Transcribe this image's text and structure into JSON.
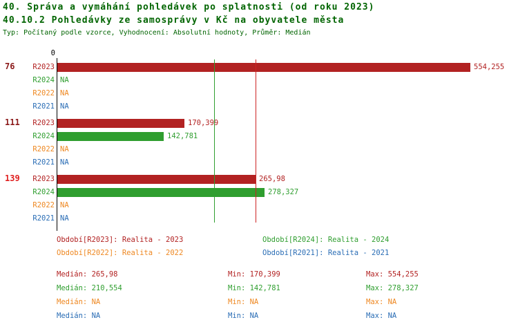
{
  "header": {
    "title1": "40. Správa a vymáhání pohledávek po splatnosti (od roku 2023)",
    "title2": "40.10.2 Pohledávky ze samosprávy v Kč na obyvatele města",
    "meta": "Typ: Počítaný podle vzorce, Vyhodnocení: Absolutní hodnoty, Průměr: Medián"
  },
  "colors": {
    "title": "#006400",
    "axis": "#000000",
    "series": {
      "R2023": "#b22222",
      "R2024": "#2f9e2f",
      "R2022": "#ee8822",
      "R2021": "#2a6db5"
    }
  },
  "chart_data": {
    "type": "bar",
    "orientation": "horizontal",
    "x_axis": {
      "zero_label": "0",
      "min": 0,
      "grid": false
    },
    "series_order": [
      "R2023",
      "R2024",
      "R2022",
      "R2021"
    ],
    "reference_lines": [
      {
        "series": "R2024",
        "value": 210.554,
        "color": "#2f9e2f"
      },
      {
        "series": "R2023",
        "value": 265.98,
        "color": "#cc2222"
      }
    ],
    "groups": [
      {
        "label": "76",
        "label_color": "#8b1a1a",
        "rows": [
          {
            "period": "R2023",
            "value": 554.255,
            "display": "554,255"
          },
          {
            "period": "R2024",
            "value": null,
            "display": "NA"
          },
          {
            "period": "R2022",
            "value": null,
            "display": "NA"
          },
          {
            "period": "R2021",
            "value": null,
            "display": "NA"
          }
        ]
      },
      {
        "label": "111",
        "label_color": "#8b1a1a",
        "rows": [
          {
            "period": "R2023",
            "value": 170.399,
            "display": "170,399"
          },
          {
            "period": "R2024",
            "value": 142.781,
            "display": "142,781"
          },
          {
            "period": "R2022",
            "value": null,
            "display": "NA"
          },
          {
            "period": "R2021",
            "value": null,
            "display": "NA"
          }
        ]
      },
      {
        "label": "139",
        "label_color": "#e02020",
        "rows": [
          {
            "period": "R2023",
            "value": 265.98,
            "display": "265,98"
          },
          {
            "period": "R2024",
            "value": 278.327,
            "display": "278,327"
          },
          {
            "period": "R2022",
            "value": null,
            "display": "NA"
          },
          {
            "period": "R2021",
            "value": null,
            "display": "NA"
          }
        ]
      }
    ],
    "legend": [
      {
        "text": "Období[R2023]: Realita - 2023",
        "color": "#b22222"
      },
      {
        "text": "Období[R2024]: Realita - 2024",
        "color": "#2f9e2f"
      },
      {
        "text": "Období[R2022]: Realita - 2022",
        "color": "#ee8822"
      },
      {
        "text": "Období[R2021]: Realita - 2021",
        "color": "#2a6db5"
      }
    ],
    "stats": [
      {
        "median": "Medián: 265,98",
        "min": "Min: 170,399",
        "max": "Max: 554,255",
        "color": "#b22222"
      },
      {
        "median": "Medián: 210,554",
        "min": "Min: 142,781",
        "max": "Max: 278,327",
        "color": "#2f9e2f"
      },
      {
        "median": "Medián: NA",
        "min": "Min: NA",
        "max": "Max: NA",
        "color": "#ee8822"
      },
      {
        "median": "Medián: NA",
        "min": "Min: NA",
        "max": "Max: NA",
        "color": "#2a6db5"
      }
    ]
  }
}
